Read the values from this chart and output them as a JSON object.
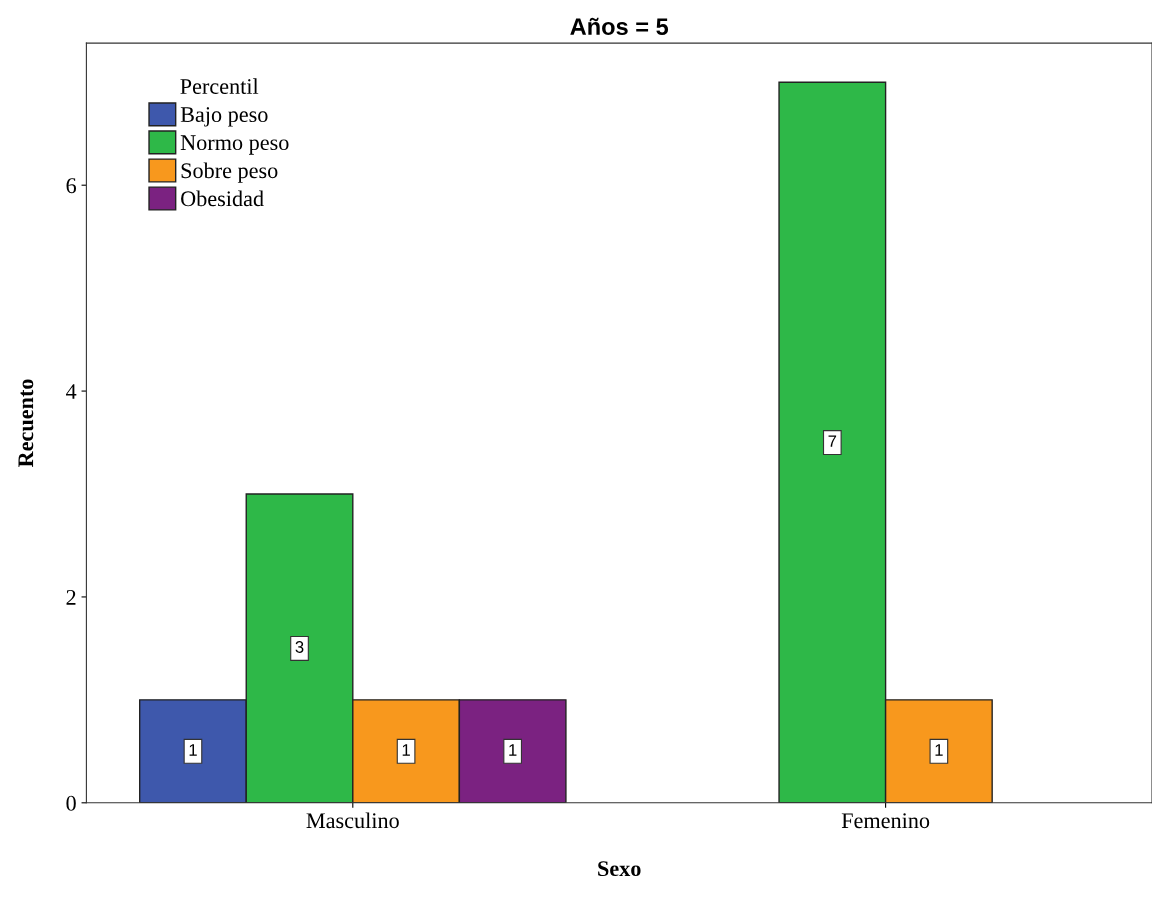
{
  "chart_data": {
    "type": "bar",
    "title": "Años = 5",
    "xlabel": "Sexo",
    "ylabel": "Recuento",
    "legend_title": "Percentil",
    "categories": [
      "Masculino",
      "Femenino"
    ],
    "series": [
      {
        "name": "Bajo peso",
        "color": "#3e58ac",
        "values": [
          1,
          null
        ]
      },
      {
        "name": "Normo peso",
        "color": "#2eb848",
        "values": [
          3,
          7
        ]
      },
      {
        "name": "Sobre peso",
        "color": "#f8981d",
        "values": [
          1,
          1
        ]
      },
      {
        "name": "Obesidad",
        "color": "#7b2281",
        "values": [
          1,
          null
        ]
      }
    ],
    "ylim": [
      0,
      7.38
    ],
    "yticks": [
      0,
      2,
      4,
      6
    ],
    "data_labels": true,
    "grid": false,
    "legend": "top left"
  }
}
